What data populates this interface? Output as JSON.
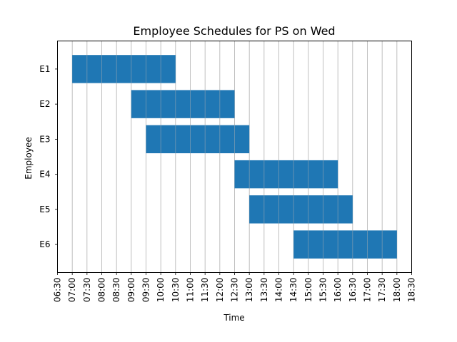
{
  "chart_data": {
    "type": "bar",
    "orientation": "horizontal",
    "title": "Employee Schedules for PS on Wed",
    "xlabel": "Time",
    "ylabel": "Employee",
    "x_ticks": [
      "06:30",
      "07:00",
      "07:30",
      "08:00",
      "08:30",
      "09:00",
      "09:30",
      "10:00",
      "10:30",
      "11:00",
      "11:30",
      "12:00",
      "12:30",
      "13:00",
      "13:30",
      "14:00",
      "14:30",
      "15:00",
      "15:30",
      "16:00",
      "16:30",
      "17:00",
      "17:30",
      "18:00",
      "18:30"
    ],
    "xlim": [
      "06:30",
      "18:30"
    ],
    "grid": "vertical",
    "bar_color": "#1f77b4",
    "categories": [
      "E1",
      "E2",
      "E3",
      "E4",
      "E5",
      "E6"
    ],
    "bars": [
      {
        "employee": "E1",
        "start": "07:00",
        "end": "10:30"
      },
      {
        "employee": "E2",
        "start": "09:00",
        "end": "12:30"
      },
      {
        "employee": "E3",
        "start": "09:30",
        "end": "13:00"
      },
      {
        "employee": "E4",
        "start": "12:30",
        "end": "16:00"
      },
      {
        "employee": "E5",
        "start": "13:00",
        "end": "16:30"
      },
      {
        "employee": "E6",
        "start": "14:30",
        "end": "18:00"
      }
    ]
  }
}
